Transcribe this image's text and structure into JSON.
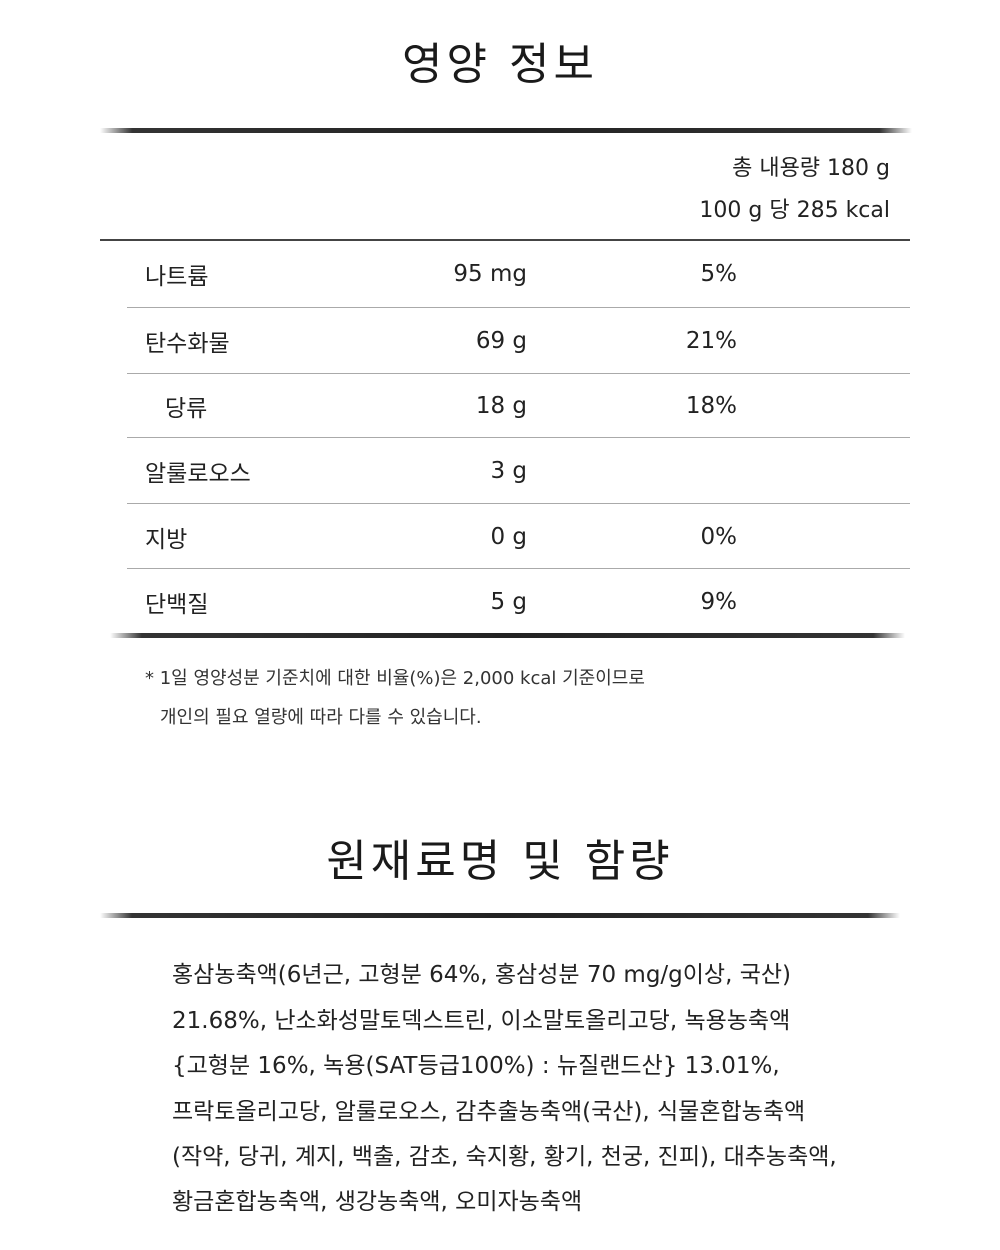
{
  "nutrition": {
    "title": "영양 정보",
    "total_content": "총 내용량 180 g",
    "per_serving": "100 g 당 285 kcal",
    "rows": [
      {
        "name": "나트륨",
        "amount": "95 mg",
        "percent": "5%"
      },
      {
        "name": "탄수화물",
        "amount": "69 g",
        "percent": "21%"
      },
      {
        "name": "당류",
        "amount": "18 g",
        "percent": "18%",
        "indent": true
      },
      {
        "name": "알룰로오스",
        "amount": "3 g",
        "percent": ""
      },
      {
        "name": "지방",
        "amount": "0 g",
        "percent": "0%"
      },
      {
        "name": "단백질",
        "amount": "5 g",
        "percent": "9%"
      }
    ],
    "footnote_line1": "* 1일 영양성분 기준치에 대한 비율(%)은 2,000 kcal 기준이므로",
    "footnote_line2": "개인의 필요 열량에 따라 다를 수 있습니다."
  },
  "ingredients": {
    "title": "원재료명 및 함량",
    "lines": [
      "홍삼농축액(6년근, 고형분 64%, 홍삼성분 70 mg/g이상, 국산)",
      "21.68%, 난소화성말토덱스트린, 이소말토올리고당, 녹용농축액",
      "{고형분 16%, 녹용(SAT등급100%) : 뉴질랜드산} 13.01%,",
      "프락토올리고당, 알룰로오스, 감추출농축액(국산), 식물혼합농축액",
      "(작약, 당귀, 계지, 백출, 감초, 숙지황, 황기, 천궁, 진피), 대추농축액,",
      "황금혼합농축액, 생강농축액, 오미자농축액"
    ]
  }
}
